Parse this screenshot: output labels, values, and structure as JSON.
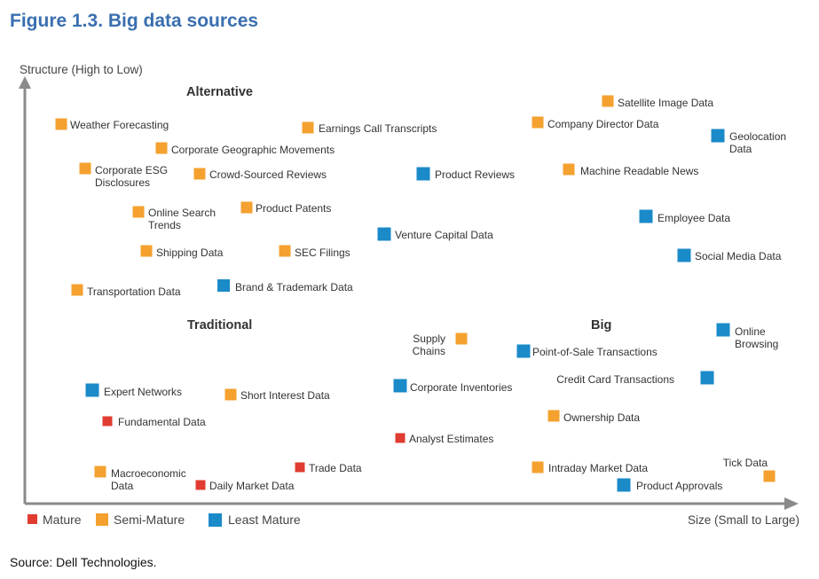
{
  "figure_title": "Figure 1.3. Big data sources",
  "source": "Source: Dell Technologies.",
  "chart_data": {
    "type": "scatter",
    "xlabel": "Size (Small to Large)",
    "ylabel": "Structure (High to Low)",
    "colors": {
      "Mature": "#e03c31",
      "Semi-Mature": "#f4a12f",
      "Least Mature": "#1a8ac9",
      "axis": "#777777",
      "text": "#333333"
    },
    "legend": [
      {
        "name": "Mature",
        "color": "#e03c31"
      },
      {
        "name": "Semi-Mature",
        "color": "#f4a12f"
      },
      {
        "name": "Least Mature",
        "color": "#1a8ac9"
      }
    ],
    "regions": [
      "Alternative",
      "Traditional",
      "Big"
    ],
    "points": [
      {
        "label": [
          "Weather Forecasting"
        ],
        "category": "Semi-Mature"
      },
      {
        "label": [
          "Corporate Geographic Movements"
        ],
        "category": "Semi-Mature"
      },
      {
        "label": [
          "Corporate ESG",
          "Disclosures"
        ],
        "category": "Semi-Mature"
      },
      {
        "label": [
          "Crowd-Sourced Reviews"
        ],
        "category": "Semi-Mature"
      },
      {
        "label": [
          "Online Search",
          "Trends"
        ],
        "category": "Semi-Mature"
      },
      {
        "label": [
          "Product Patents"
        ],
        "category": "Semi-Mature"
      },
      {
        "label": [
          "Shipping Data"
        ],
        "category": "Semi-Mature"
      },
      {
        "label": [
          "SEC Filings"
        ],
        "category": "Semi-Mature"
      },
      {
        "label": [
          "Transportation Data"
        ],
        "category": "Semi-Mature"
      },
      {
        "label": [
          "Brand & Trademark Data"
        ],
        "category": "Least Mature"
      },
      {
        "label": [
          "Earnings Call Transcripts"
        ],
        "category": "Semi-Mature"
      },
      {
        "label": [
          "Product Reviews"
        ],
        "category": "Least Mature"
      },
      {
        "label": [
          "Venture Capital Data"
        ],
        "category": "Least Mature"
      },
      {
        "label": [
          "Satellite Image Data"
        ],
        "category": "Semi-Mature"
      },
      {
        "label": [
          "Company Director Data"
        ],
        "category": "Semi-Mature"
      },
      {
        "label": [
          "Geolocation",
          "Data"
        ],
        "category": "Least Mature"
      },
      {
        "label": [
          "Machine Readable News"
        ],
        "category": "Semi-Mature"
      },
      {
        "label": [
          "Employee Data"
        ],
        "category": "Least Mature"
      },
      {
        "label": [
          "Social Media Data"
        ],
        "category": "Least Mature"
      },
      {
        "label": [
          "Expert Networks"
        ],
        "category": "Least Mature"
      },
      {
        "label": [
          "Short Interest Data"
        ],
        "category": "Semi-Mature"
      },
      {
        "label": [
          "Fundamental Data"
        ],
        "category": "Mature"
      },
      {
        "label": [
          "Macroeconomic",
          "Data"
        ],
        "category": "Semi-Mature"
      },
      {
        "label": [
          "Daily Market Data"
        ],
        "category": "Mature"
      },
      {
        "label": [
          "Trade Data"
        ],
        "category": "Mature"
      },
      {
        "label": [
          "Supply",
          "Chains"
        ],
        "category": "Semi-Mature"
      },
      {
        "label": [
          "Point-of-Sale Transactions"
        ],
        "category": "Least Mature"
      },
      {
        "label": [
          "Corporate Inventories"
        ],
        "category": "Least Mature"
      },
      {
        "label": [
          "Analyst Estimates"
        ],
        "category": "Mature"
      },
      {
        "label": [
          "Online",
          "Browsing"
        ],
        "category": "Least Mature"
      },
      {
        "label": [
          "Credit Card Transactions"
        ],
        "category": "Least Mature"
      },
      {
        "label": [
          "Ownership Data"
        ],
        "category": "Semi-Mature"
      },
      {
        "label": [
          "Intraday Market Data"
        ],
        "category": "Semi-Mature"
      },
      {
        "label": [
          "Product Approvals"
        ],
        "category": "Least Mature"
      },
      {
        "label": [
          "Tick Data"
        ],
        "category": "Semi-Mature"
      }
    ]
  }
}
